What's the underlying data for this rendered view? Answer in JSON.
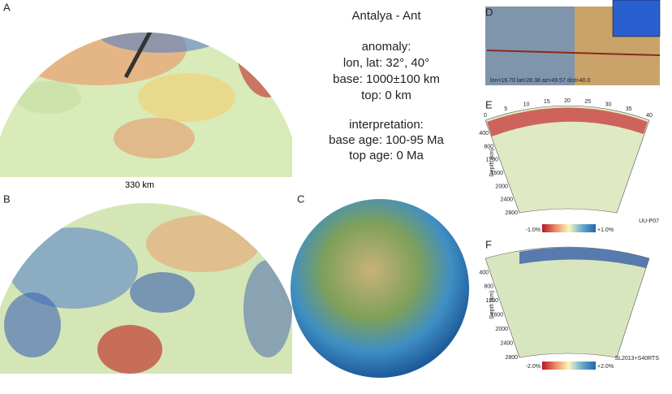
{
  "panels": {
    "a": "A",
    "b": "B",
    "c": "C",
    "d": "D",
    "e": "E",
    "f": "F"
  },
  "scale_label": "330 km",
  "info": {
    "title": "Antalya - Ant",
    "anomaly_heading": "anomaly:",
    "lonlat": "lon, lat: 32°, 40°",
    "base": "base: 1000±100 km",
    "top": "top: 0 km",
    "interpretation_heading": "interpretation:",
    "base_age": "base age: 100-95 Ma",
    "top_age": "top age: 0 Ma"
  },
  "section_d": {
    "caption": "lon=16.70 lat=28.38 az=49.57 dist=40.0"
  },
  "section_e": {
    "top_ticks": [
      "0",
      "5",
      "10",
      "15",
      "20",
      "25",
      "30",
      "35",
      "40"
    ],
    "depth_ticks": [
      "400",
      "800",
      "1200",
      "1600",
      "2000",
      "2400",
      "2800"
    ],
    "depth_label": "Depth (km)",
    "scale_min": "-1.0%",
    "scale_max": "+1.0%",
    "model": "UU-P07"
  },
  "section_f": {
    "depth_ticks": [
      "400",
      "800",
      "1200",
      "1600",
      "2000",
      "2400",
      "2800"
    ],
    "depth_label": "Depth (km)",
    "scale_min": "-2.0%",
    "scale_max": "+2.0%",
    "model": "SL2013+S40RTS"
  }
}
